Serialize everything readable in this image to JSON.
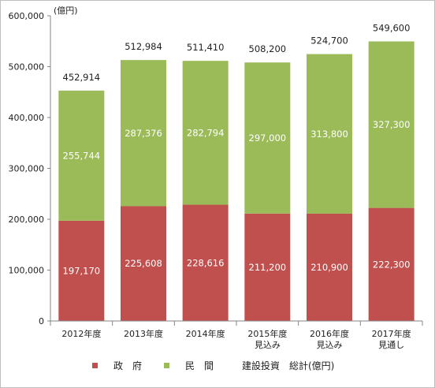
{
  "chart_data": {
    "type": "bar",
    "stacked": true,
    "unit": "(億円)",
    "categories": [
      [
        "2012年度"
      ],
      [
        "2013年度"
      ],
      [
        "2014年度"
      ],
      [
        "2015年度",
        "見込み"
      ],
      [
        "2016年度",
        "見込み"
      ],
      [
        "2017年度",
        "見通し"
      ]
    ],
    "series": [
      {
        "name": "政　府",
        "color": "#c0504d",
        "values": [
          197170,
          225608,
          228616,
          211200,
          210900,
          222300
        ],
        "labels": [
          "197,170",
          "225,608",
          "228,616",
          "211,200",
          "210,900",
          "222,300"
        ]
      },
      {
        "name": "民　間",
        "color": "#9bbb59",
        "values": [
          255744,
          287376,
          282794,
          297000,
          313800,
          327300
        ],
        "labels": [
          "255,744",
          "287,376",
          "282,794",
          "297,000",
          "313,800",
          "327,300"
        ]
      }
    ],
    "totals": [
      452914,
      512984,
      511410,
      508200,
      524700,
      549600
    ],
    "total_labels": [
      "452,914",
      "512,984",
      "511,410",
      "508,200",
      "524,700",
      "549,600"
    ],
    "total_legend": "建設投資　総計(億円)",
    "ylim": [
      0,
      600000
    ],
    "yticks": [
      0,
      100000,
      200000,
      300000,
      400000,
      500000,
      600000
    ],
    "ytick_labels": [
      "0",
      "100,000",
      "200,000",
      "300,000",
      "400,000",
      "500,000",
      "600,000"
    ],
    "legend_position": "bottom",
    "grid": false
  }
}
